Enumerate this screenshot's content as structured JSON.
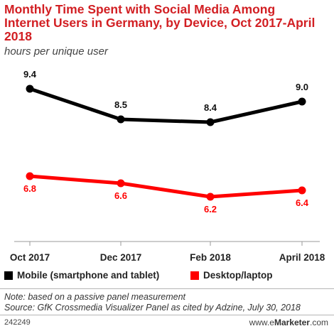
{
  "title": "Monthly Time Spent with Social Media Among Internet Users in Germany, by Device, Oct 2017-April 2018",
  "subtitle": "hours per unique user",
  "legend": {
    "mobile": "Mobile (smartphone and tablet)",
    "desktop": "Desktop/laptop"
  },
  "note": "Note: based on a passive panel measurement",
  "source": "Source: GfK Crossmedia Visualizer Panel as cited by Adzine, July 30, 2018",
  "footer": {
    "id": "242249",
    "brand_prefix": "www.",
    "brand_e": "e",
    "brand_name": "Marketer",
    "brand_suffix": ".com"
  },
  "colors": {
    "title": "#d21f23",
    "mobile": "#000000",
    "desktop": "#ff0000"
  },
  "chart_data": {
    "type": "line",
    "categories": [
      "Oct 2017",
      "Dec 2017",
      "Feb 2018",
      "April 2018"
    ],
    "series": [
      {
        "name": "Mobile (smartphone and tablet)",
        "values": [
          9.4,
          8.5,
          8.4,
          9.0
        ],
        "labels": [
          "9.4",
          "8.5",
          "8.4",
          "9.0"
        ],
        "color": "#000000"
      },
      {
        "name": "Desktop/laptop",
        "values": [
          6.8,
          6.6,
          6.2,
          6.4
        ],
        "labels": [
          "6.8",
          "6.6",
          "6.2",
          "6.4"
        ],
        "color": "#ff0000"
      }
    ],
    "grid": false
  }
}
